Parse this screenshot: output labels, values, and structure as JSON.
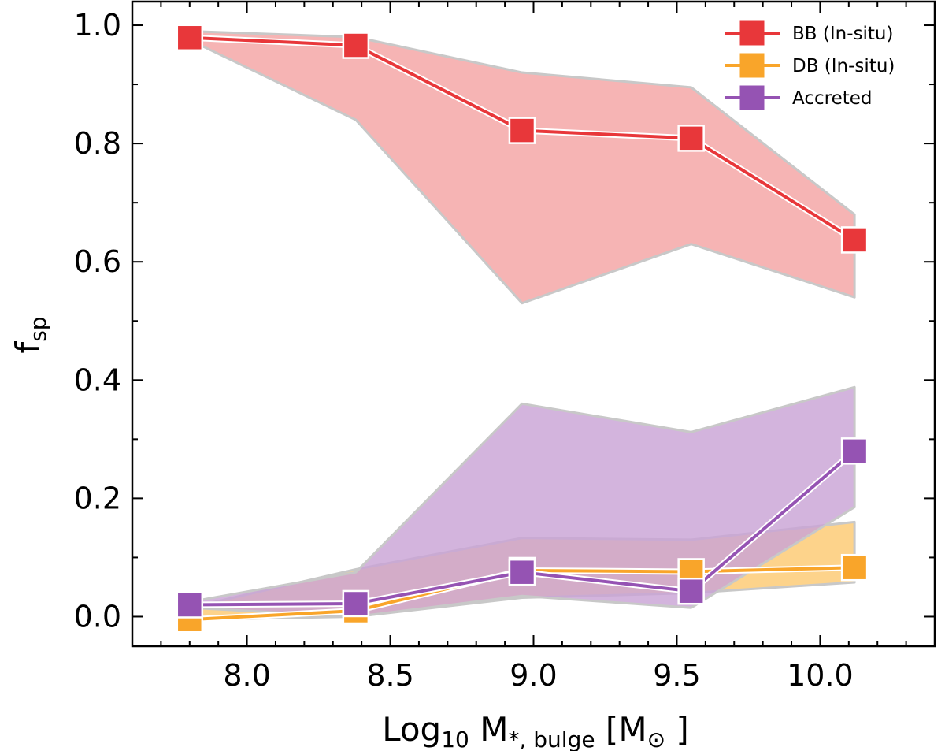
{
  "chart_data": {
    "type": "line",
    "xlabel": {
      "main": "Log",
      "sub1": "10",
      "mid": " M",
      "sub2": "*, bulge",
      "unit_open": " [M",
      "unit_sub": "⊙",
      "unit_close": " ]"
    },
    "ylabel": {
      "main": "f",
      "sub": "sp"
    },
    "xlim": [
      7.6,
      10.4
    ],
    "ylim": [
      -0.05,
      1.04
    ],
    "xticks": [
      8.0,
      8.5,
      9.0,
      9.5,
      10.0
    ],
    "xtick_labels": [
      "8.0",
      "8.5",
      "9.0",
      "9.5",
      "10.0"
    ],
    "yticks": [
      0.0,
      0.2,
      0.4,
      0.6,
      0.8,
      1.0
    ],
    "ytick_labels": [
      "0.0",
      "0.2",
      "0.4",
      "0.6",
      "0.8",
      "1.0"
    ],
    "grid": false,
    "legend_position": "top-right",
    "x": [
      7.8,
      8.38,
      8.96,
      9.55,
      10.12
    ],
    "series": [
      {
        "name": "BB (In-situ)",
        "color": "#e8373a",
        "fill_color": "#f4a3a3",
        "values": [
          0.979,
          0.966,
          0.822,
          0.809,
          0.637
        ],
        "band_upper": [
          0.99,
          0.98,
          0.92,
          0.895,
          0.68
        ],
        "band_lower": [
          0.975,
          0.84,
          0.53,
          0.63,
          0.54
        ]
      },
      {
        "name": "DB (In-situ)",
        "color": "#f9a52a",
        "fill_color": "#fcc972",
        "values": [
          -0.005,
          0.01,
          0.078,
          0.076,
          0.083
        ],
        "band_upper": [
          0.015,
          0.08,
          0.133,
          0.13,
          0.16
        ],
        "band_lower": [
          -0.005,
          0.0,
          0.032,
          0.04,
          0.058
        ]
      },
      {
        "name": "Accreted",
        "color": "#9553b3",
        "fill_color": "#c9a3d6",
        "values": [
          0.02,
          0.022,
          0.075,
          0.043,
          0.28
        ],
        "band_upper": [
          0.025,
          0.075,
          0.36,
          0.312,
          0.388
        ],
        "band_lower": [
          0.015,
          0.0,
          0.035,
          0.015,
          0.185
        ]
      }
    ]
  }
}
